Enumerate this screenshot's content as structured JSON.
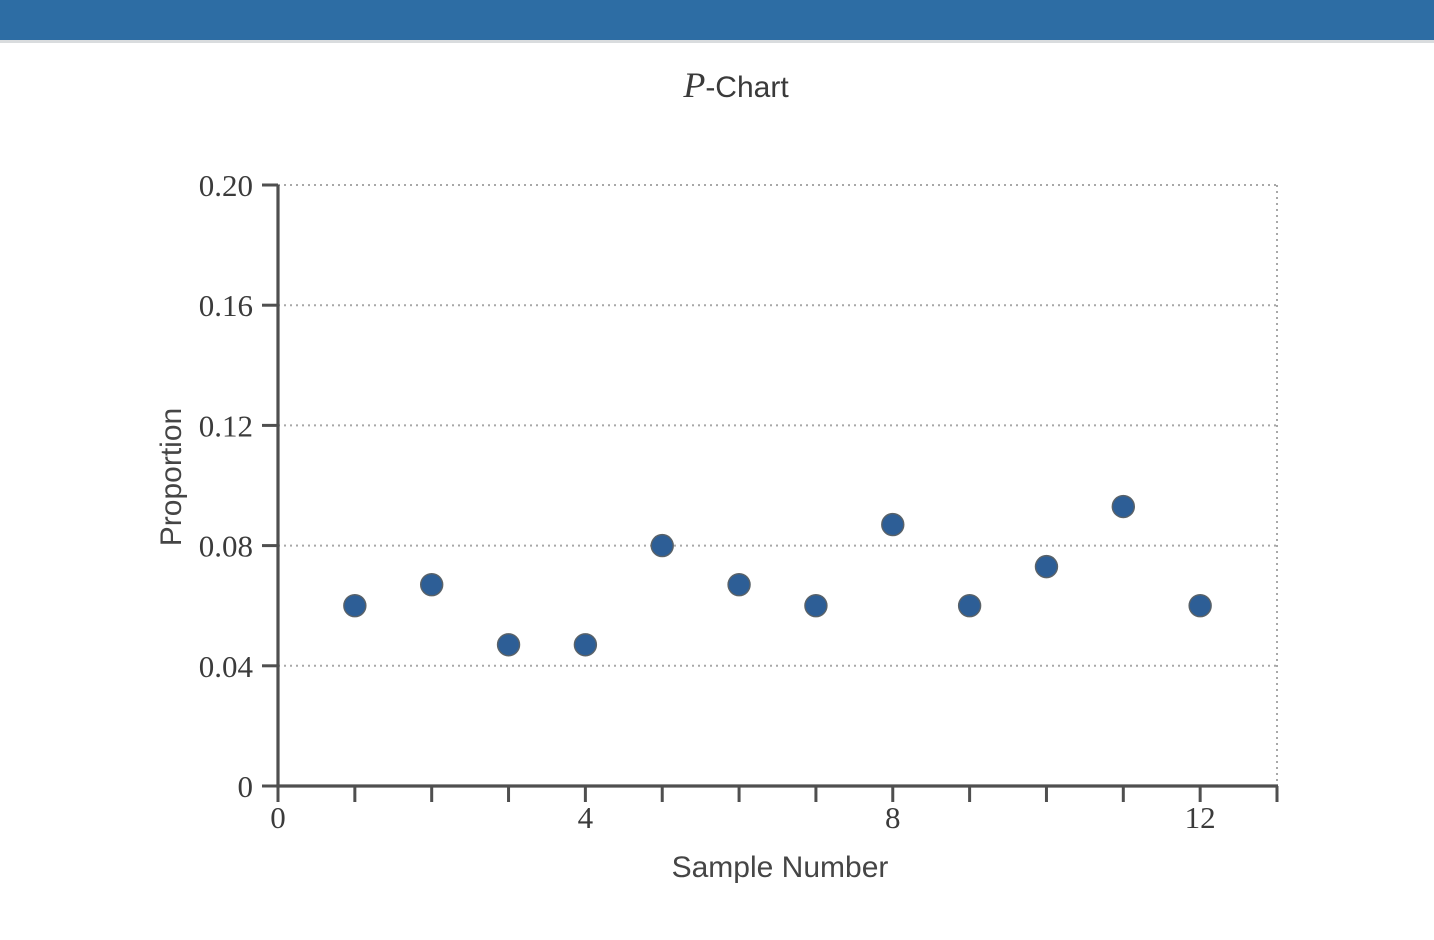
{
  "banner": {
    "color": "#2d6da4"
  },
  "title": {
    "italic_part": "P",
    "regular_part": "-Chart"
  },
  "chart_data": {
    "type": "scatter",
    "title": "P-Chart",
    "xlabel": "Sample Number",
    "ylabel": "Proportion",
    "x": [
      1,
      2,
      3,
      4,
      5,
      6,
      7,
      8,
      9,
      10,
      11,
      12
    ],
    "values": [
      0.06,
      0.067,
      0.047,
      0.047,
      0.08,
      0.067,
      0.06,
      0.087,
      0.06,
      0.073,
      0.093,
      0.06
    ],
    "xlim": [
      0,
      13
    ],
    "ylim": [
      0,
      0.2
    ],
    "x_ticks": {
      "values": [
        0,
        4,
        8,
        12
      ],
      "labels": [
        "0",
        "4",
        "8",
        "12"
      ],
      "minor_step": 1
    },
    "y_ticks": {
      "values": [
        0,
        0.04,
        0.08,
        0.12,
        0.16,
        0.2
      ],
      "labels": [
        "0",
        "0.04",
        "0.08",
        "0.12",
        "0.16",
        "0.20"
      ]
    },
    "grid": {
      "horizontal_dotted": true,
      "right_border_dotted": true
    },
    "legend": "none",
    "colors": {
      "point_fill": "#2d5e96",
      "point_edge": "#5a6268",
      "axis": "#4f4f4f",
      "grid": "#a8a8a8",
      "text": "#3b3b3b",
      "banner_blue": "#2d6da4"
    }
  }
}
